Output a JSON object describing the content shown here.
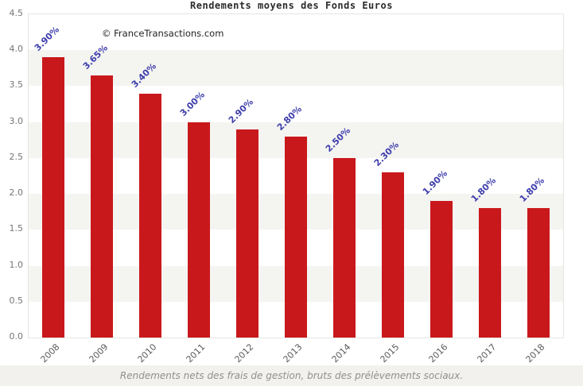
{
  "title": "Rendements moyens des Fonds Euros",
  "watermark": "© FranceTransactions.com",
  "footer_note": "Rendements nets des frais de gestion, bruts des prélèvements sociaux.",
  "colors": {
    "bar": "#c9181b",
    "value_label": "#3d3dac",
    "band_gray": "#f4f4f1",
    "band_white": "#ffffff",
    "axis_text": "#757575",
    "xtick_text": "#5a5a5a",
    "title_text": "#2b2b2b",
    "footer_bg": "#f2f1ee",
    "footer_text": "#8f8f8f"
  },
  "chart_data": {
    "type": "bar",
    "title": "Rendements moyens des Fonds Euros",
    "annotation": "© FranceTransactions.com",
    "categories": [
      "2008",
      "2009",
      "2010",
      "2011",
      "2012",
      "2013",
      "2014",
      "2015",
      "2016",
      "2017",
      "2018"
    ],
    "values": [
      3.9,
      3.65,
      3.4,
      3.0,
      2.9,
      2.8,
      2.5,
      2.3,
      1.9,
      1.8,
      1.8
    ],
    "value_labels": [
      "3.90%",
      "3.65%",
      "3.40%",
      "3.00%",
      "2.90%",
      "2.80%",
      "2.50%",
      "2.30%",
      "1.90%",
      "1.80%",
      "1.80%"
    ],
    "xlabel": "",
    "ylabel": "",
    "ylim": [
      0,
      4.5
    ],
    "ytick_step": 0.5,
    "ytick_labels": [
      "4.5",
      "4.0",
      "3.5",
      "3.0",
      "2.5",
      "2.0",
      "1.5",
      "1.0",
      "0.5",
      "0.0"
    ],
    "grid": "alternating horizontal bands every 0.5, gray between 4.0-3.5, 3.0-2.5, 2.0-1.5, 1.0-0.5",
    "legend": "none",
    "bar_label_rotation_deg": -45,
    "xtick_rotation_deg": -45
  }
}
